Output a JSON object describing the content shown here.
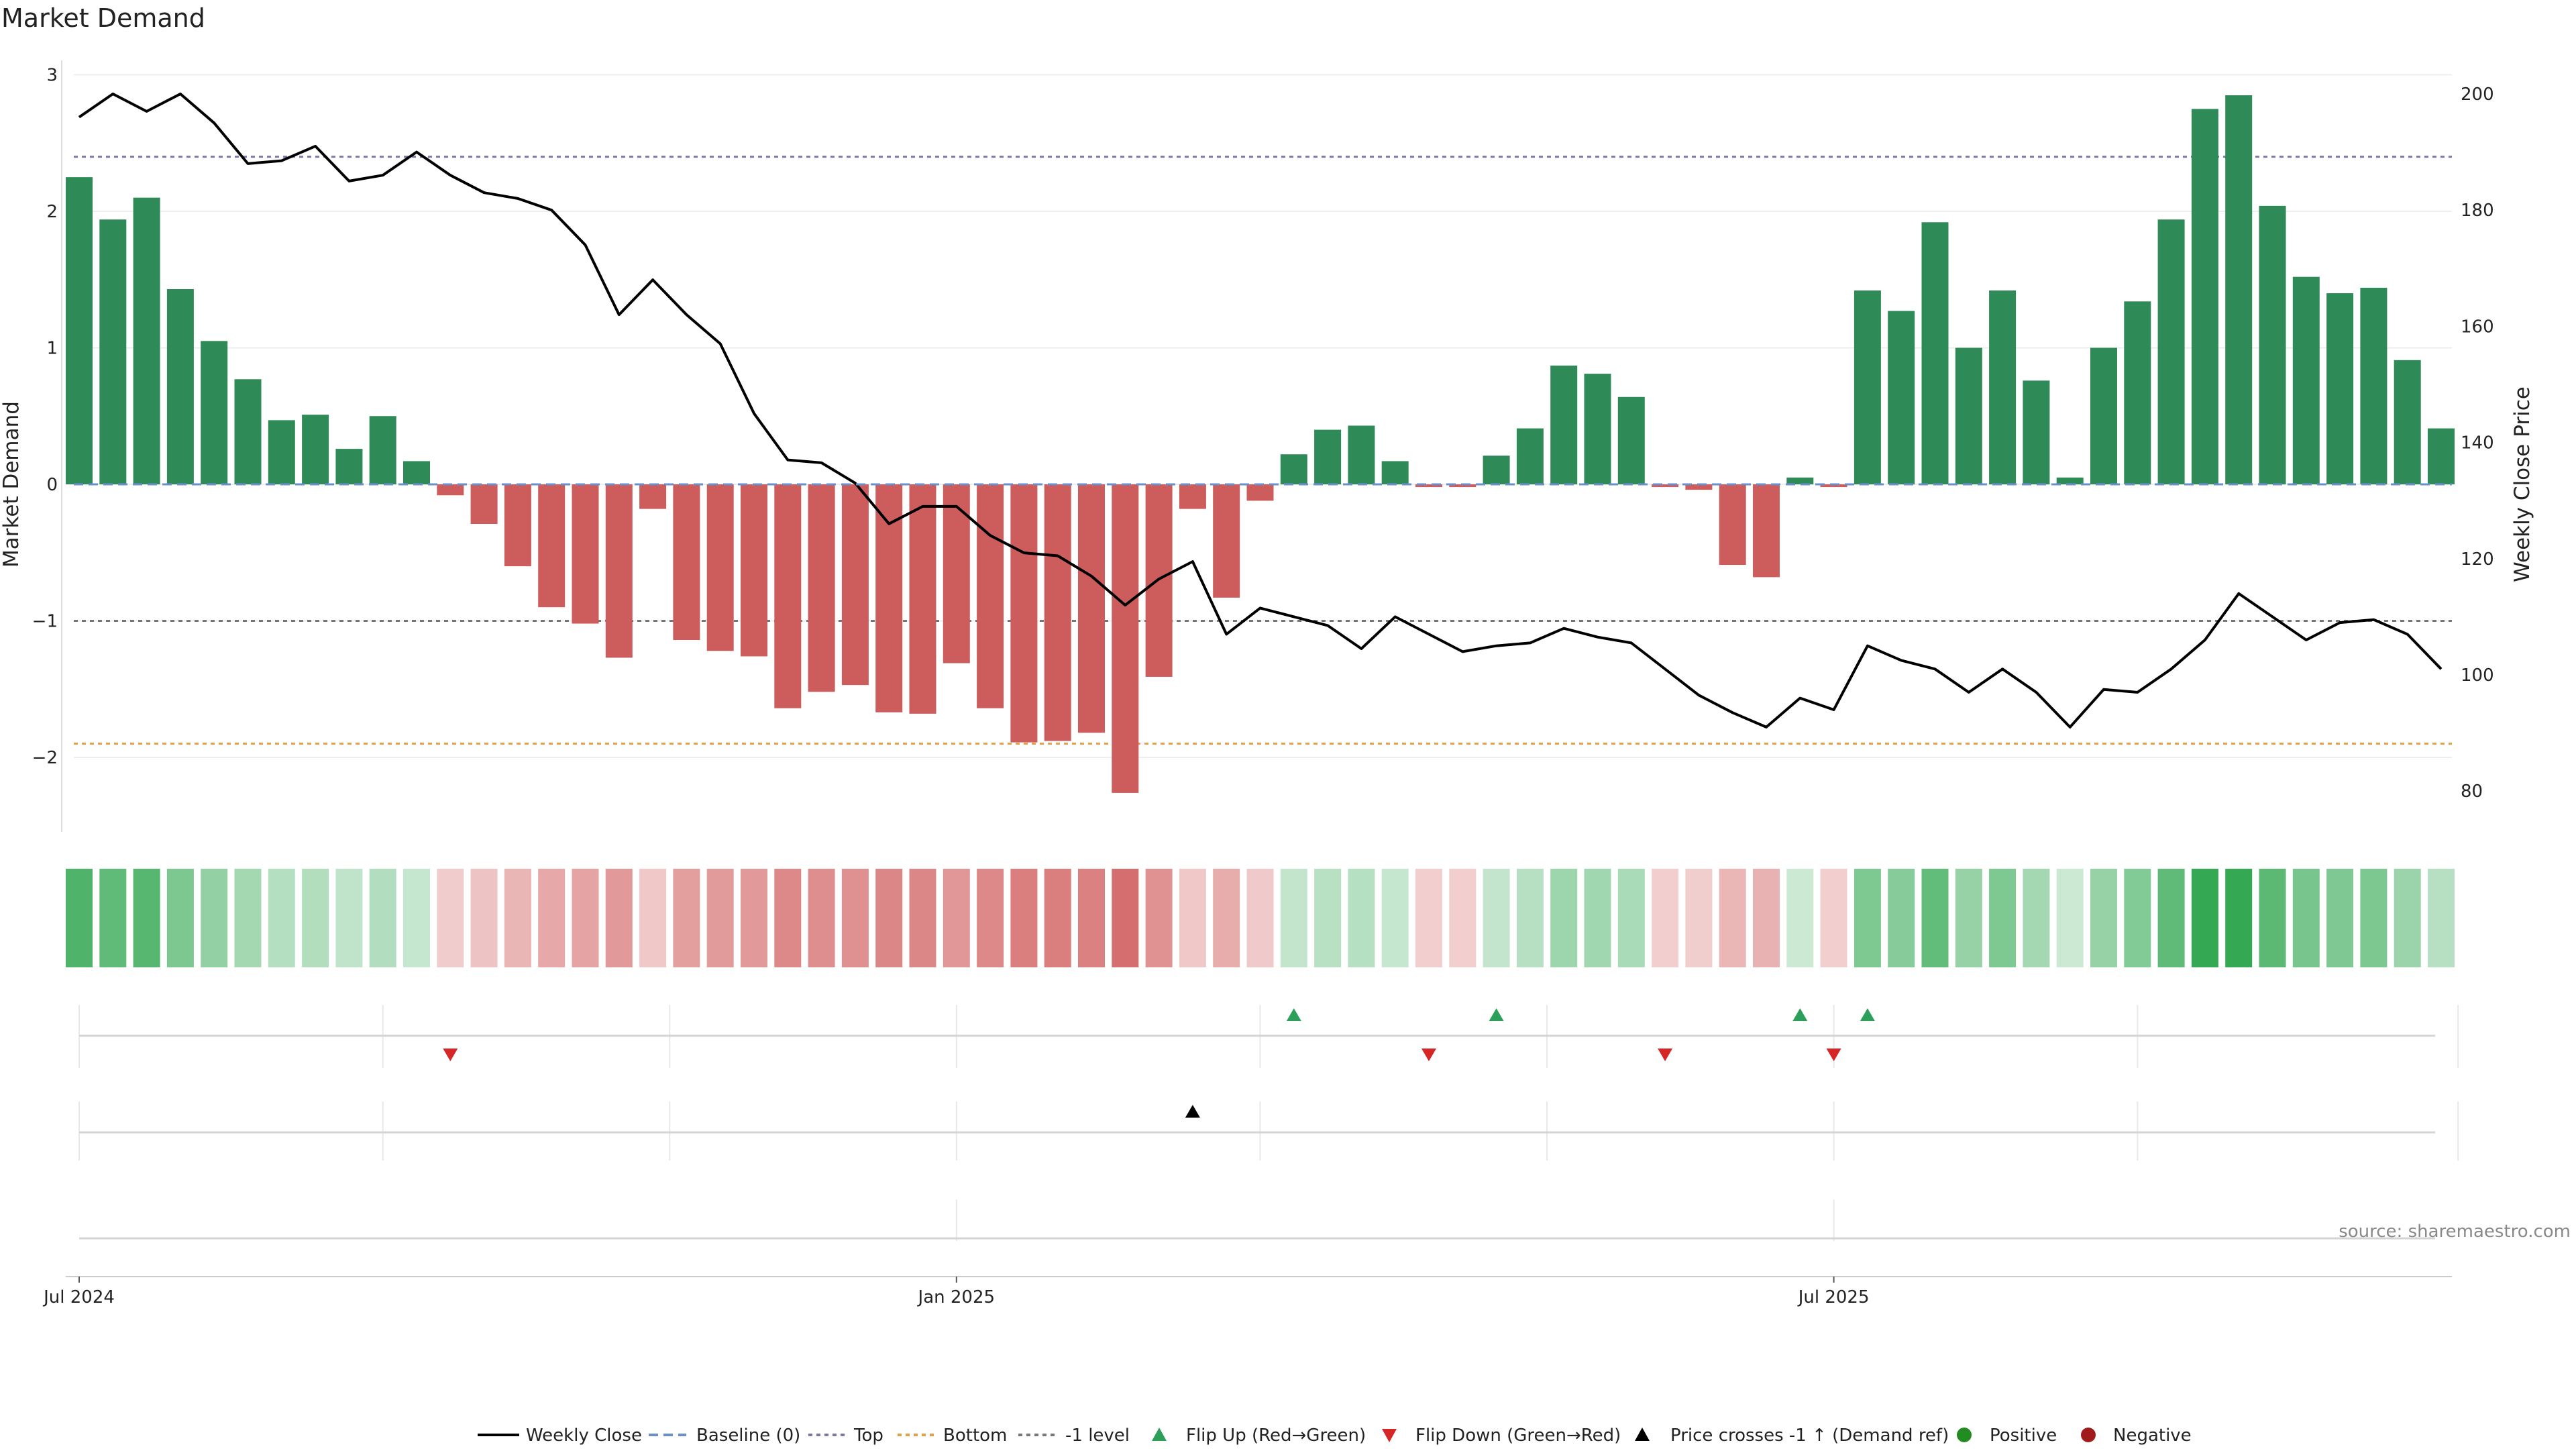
{
  "chart_data": {
    "type": "bar",
    "title": "Market Demand",
    "ylabel_left": "Market Demand",
    "ylabel_right": "Weekly Close Price",
    "ylim_left": [
      -2.5,
      3
    ],
    "yticks_left": [
      "3",
      "2",
      "1",
      "0",
      "−1",
      "−2"
    ],
    "ylim_right": [
      75,
      205
    ],
    "yticks_right": [
      "200",
      "180",
      "160",
      "140",
      "120",
      "100",
      "80"
    ],
    "x_tick_labels": [
      "Jul 2024",
      "Jan 2025",
      "Jul 2025"
    ],
    "x_tick_week_index": [
      0,
      26,
      52
    ],
    "reference_lines": {
      "top": 2.4,
      "bottom": -1.9,
      "minus_one": -1,
      "baseline": 0
    },
    "demand": [
      2.25,
      1.94,
      2.1,
      1.43,
      1.05,
      0.77,
      0.47,
      0.51,
      0.26,
      0.5,
      0.17,
      -0.08,
      -0.29,
      -0.6,
      -0.9,
      -1.02,
      -1.27,
      -0.18,
      -1.14,
      -1.22,
      -1.26,
      -1.64,
      -1.52,
      -1.47,
      -1.67,
      -1.68,
      -1.31,
      -1.64,
      -1.89,
      -1.88,
      -1.82,
      -2.26,
      -1.41,
      -0.18,
      -0.83,
      -0.12,
      0.22,
      0.4,
      0.43,
      0.17,
      -0.02,
      -0.02,
      0.21,
      0.41,
      0.87,
      0.81,
      0.64,
      -0.02,
      -0.04,
      -0.59,
      -0.68,
      0.05,
      -0.02,
      1.42,
      1.27,
      1.92,
      1.0,
      1.42,
      0.76,
      0.05,
      1.0,
      1.34,
      1.94,
      2.75,
      2.85,
      2.04,
      1.52,
      1.4,
      1.44,
      0.91,
      0.41
    ],
    "weekly_close": [
      196,
      200,
      197,
      200,
      195,
      188,
      188.5,
      191,
      185,
      186,
      190,
      186,
      183,
      182,
      180,
      174,
      162,
      168,
      162,
      157,
      145,
      137,
      136.5,
      133,
      126,
      129,
      129,
      124,
      121,
      120.5,
      117,
      112,
      116.5,
      119.5,
      107,
      111.5,
      110,
      108.5,
      104.5,
      110,
      107,
      104,
      105,
      105.5,
      108,
      106.5,
      105.5,
      101,
      96.5,
      93.5,
      91,
      96,
      94,
      105,
      102.5,
      101,
      97,
      101,
      97,
      91,
      97.5,
      97,
      101,
      106,
      114,
      110,
      106,
      109,
      109.5,
      107,
      101
    ],
    "flip_up_week_index": [
      36,
      42,
      51,
      53
    ],
    "flip_down_week_index": [
      11,
      40,
      47,
      52
    ],
    "price_cross_week_index": [
      33
    ],
    "legend": [
      "Weekly Close",
      "Baseline (0)",
      "Top",
      "Bottom",
      "-1 level",
      "Flip Up (Red→Green)",
      "Flip Down (Green→Red)",
      "Price crosses -1 ↑ (Demand ref)",
      "Positive",
      "Negative"
    ],
    "source": "source: sharemaestro.com"
  },
  "colors": {
    "positive_bar": "#2e8b57",
    "negative_bar": "#cd5c5c",
    "price_line": "#000000",
    "baseline": "#6a8fc9",
    "top_line": "#7a7aa8",
    "bottom_line": "#e0a04a",
    "minus_one_line": "#777777",
    "flip_up": "#2ca05a",
    "flip_down": "#d62728",
    "cross": "#000000",
    "positive_dot": "#228b22",
    "negative_dot": "#a01c1c"
  }
}
